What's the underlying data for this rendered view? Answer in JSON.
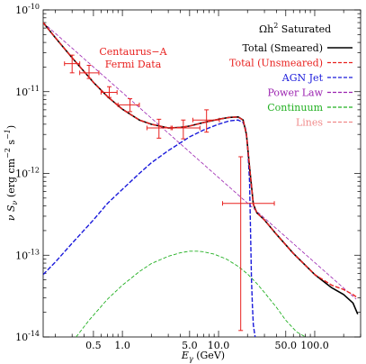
{
  "chart_data": {
    "type": "line",
    "xlabel": "E_γ (GeV)",
    "ylabel": "ν S_ν (erg cm⁻² s⁻¹)",
    "x_scale": "log",
    "y_scale": "log",
    "xlim": [
      0.15,
      300
    ],
    "ylim": [
      1e-14,
      1e-10
    ],
    "x_tick_labels": [
      "0.5",
      "1.0",
      "5.0",
      "10.0",
      "50.0",
      "100.0"
    ],
    "x_tick_values": [
      0.5,
      1.0,
      5.0,
      10.0,
      50.0,
      100.0
    ],
    "y_tick_labels": [
      {
        "mant": "10",
        "exp": "-10",
        "value": 1e-10
      },
      {
        "mant": "10",
        "exp": "-11",
        "value": 1e-11
      },
      {
        "mant": "10",
        "exp": "-12",
        "value": 1e-12
      },
      {
        "mant": "10",
        "exp": "-13",
        "value": 1e-13
      },
      {
        "mant": "10",
        "exp": "-14",
        "value": 1e-14
      }
    ],
    "legend": {
      "title": "Ωh² Saturated",
      "placement": "top-right",
      "entries": [
        {
          "label": "Total (Smeared)",
          "color": "#000000",
          "dash": "solid"
        },
        {
          "label": "Total (Unsmeared)",
          "color": "#e8201e",
          "dash": "dashed"
        },
        {
          "label": "AGN Jet",
          "color": "#1a1adb",
          "dash": "dashed"
        },
        {
          "label": "Power Law",
          "color": "#9b22b0",
          "dash": "dashed"
        },
        {
          "label": "Continuum",
          "color": "#22b022",
          "dash": "dashed"
        },
        {
          "label": "Lines",
          "color": "#f08a8a",
          "dash": "dashed"
        }
      ]
    },
    "annotation": [
      "Centaurus−A",
      "Fermi Data"
    ],
    "series": [
      {
        "name": "Total (Smeared)",
        "color": "#000000",
        "dash": "solid",
        "x": [
          0.15,
          0.2,
          0.3,
          0.5,
          0.7,
          1.0,
          1.5,
          2.0,
          3.0,
          4.0,
          5.0,
          7.0,
          10.0,
          13.0,
          16.0,
          18.0,
          19.5,
          21.0,
          22.0,
          23.0,
          25.0,
          30.0,
          40.0,
          60.0,
          100.0,
          150.0,
          200.0,
          250.0,
          280.0
        ],
        "y": [
          7e-11,
          4.6e-11,
          2.6e-11,
          1.3e-11,
          8.7e-12,
          6.1e-12,
          4.5e-12,
          4e-12,
          3.6e-12,
          3.65e-12,
          3.8e-12,
          4.2e-12,
          4.6e-12,
          4.85e-12,
          4.9e-12,
          4.5e-12,
          3e-12,
          1.2e-12,
          7e-13,
          4.2e-13,
          3.3e-13,
          2.7e-13,
          1.8e-13,
          1.05e-13,
          5.8e-14,
          4e-14,
          3.3e-14,
          2.6e-14,
          1.9e-14
        ]
      },
      {
        "name": "Total (Unsmeared)",
        "color": "#e8201e",
        "dash": "dashed",
        "x": [
          0.15,
          0.2,
          0.3,
          0.5,
          0.7,
          1.0,
          1.5,
          2.0,
          3.0,
          4.0,
          5.0,
          7.0,
          10.0,
          13.0,
          16.0,
          18.0,
          19.5,
          21.0,
          22.0,
          23.0,
          25.0,
          30.0,
          40.0,
          60.0,
          100.0,
          150.0,
          200.0,
          250.0,
          280.0
        ],
        "y": [
          7e-11,
          4.6e-11,
          2.6e-11,
          1.3e-11,
          8.7e-12,
          6.1e-12,
          4.5e-12,
          4e-12,
          3.6e-12,
          3.65e-12,
          3.8e-12,
          4.2e-12,
          4.6e-12,
          4.85e-12,
          4.9e-12,
          4.5e-12,
          3e-12,
          1.2e-12,
          7e-13,
          4.2e-13,
          3.3e-13,
          2.7e-13,
          1.8e-13,
          1.05e-13,
          5.8e-14,
          4.3e-14,
          3.8e-14,
          3.3e-14,
          3e-14
        ]
      },
      {
        "name": "AGN Jet",
        "color": "#1a1adb",
        "dash": "dashed",
        "x": [
          0.15,
          0.2,
          0.3,
          0.5,
          0.7,
          1.0,
          1.5,
          2.0,
          3.0,
          5.0,
          7.0,
          10.0,
          13.0,
          16.0,
          18.0,
          19.0,
          20.0,
          21.0,
          21.5,
          22.0,
          22.5,
          23.0,
          24.0
        ],
        "y": [
          5.8e-14,
          8.2e-14,
          1.4e-13,
          2.7e-13,
          4.3e-13,
          6.4e-13,
          1e-12,
          1.35e-12,
          1.9e-12,
          2.8e-12,
          3.4e-12,
          4e-12,
          4.4e-12,
          4.5e-12,
          4.2e-12,
          3.6e-12,
          2.3e-12,
          8e-13,
          2e-13,
          5e-14,
          2.4e-14,
          1.4e-14,
          1e-14
        ]
      },
      {
        "name": "Power Law",
        "color": "#9b22b0",
        "dash": "dashed",
        "x": [
          0.15,
          270.0
        ],
        "y": [
          7e-11,
          2.9e-14
        ]
      },
      {
        "name": "Continuum",
        "color": "#22b022",
        "dash": "dashed",
        "x": [
          0.33,
          0.45,
          0.7,
          1.0,
          1.5,
          2.0,
          3.0,
          4.0,
          5.0,
          6.0,
          7.0,
          9.0,
          12.0,
          16.0,
          20.0,
          25.0,
          30.0,
          40.0,
          50.0,
          65.0,
          80.0
        ],
        "y": [
          1e-14,
          1.6e-14,
          2.9e-14,
          4.3e-14,
          6.3e-14,
          7.9e-14,
          9.7e-14,
          1.07e-13,
          1.12e-13,
          1.12e-13,
          1.1e-13,
          1.03e-13,
          9e-14,
          7.3e-14,
          5.9e-14,
          4.5e-14,
          3.5e-14,
          2.3e-14,
          1.6e-14,
          1.15e-14,
          1e-14
        ]
      }
    ],
    "data_points": {
      "name": "Fermi Data",
      "color": "#e8201e",
      "points": [
        {
          "x": 0.3,
          "xlo": 0.25,
          "xhi": 0.36,
          "y": 2.2e-11,
          "ylo": 1.7e-11,
          "yhi": 2.8e-11
        },
        {
          "x": 0.45,
          "xlo": 0.36,
          "xhi": 0.57,
          "y": 1.7e-11,
          "ylo": 1.45e-11,
          "yhi": 2.1e-11
        },
        {
          "x": 0.73,
          "xlo": 0.6,
          "xhi": 0.88,
          "y": 9.8e-12,
          "ylo": 8.5e-12,
          "yhi": 1.15e-11
        },
        {
          "x": 1.2,
          "xlo": 0.9,
          "xhi": 1.5,
          "y": 6.9e-12,
          "ylo": 5.7e-12,
          "yhi": 8.2e-12
        },
        {
          "x": 2.4,
          "xlo": 1.8,
          "xhi": 3.2,
          "y": 3.6e-12,
          "ylo": 2.7e-12,
          "yhi": 4.6e-12
        },
        {
          "x": 4.3,
          "xlo": 3.3,
          "xhi": 6.4,
          "y": 3.6e-12,
          "ylo": 2.65e-12,
          "yhi": 4.5e-12
        },
        {
          "x": 7.5,
          "xlo": 5.4,
          "xhi": 10.2,
          "y": 4.5e-12,
          "ylo": 3.2e-12,
          "yhi": 6e-12
        },
        {
          "x": 17.0,
          "xlo": 11.0,
          "xhi": 38.0,
          "y": 4.3e-13,
          "ylo": 1.2e-14,
          "yhi": 1.6e-12
        }
      ]
    }
  }
}
